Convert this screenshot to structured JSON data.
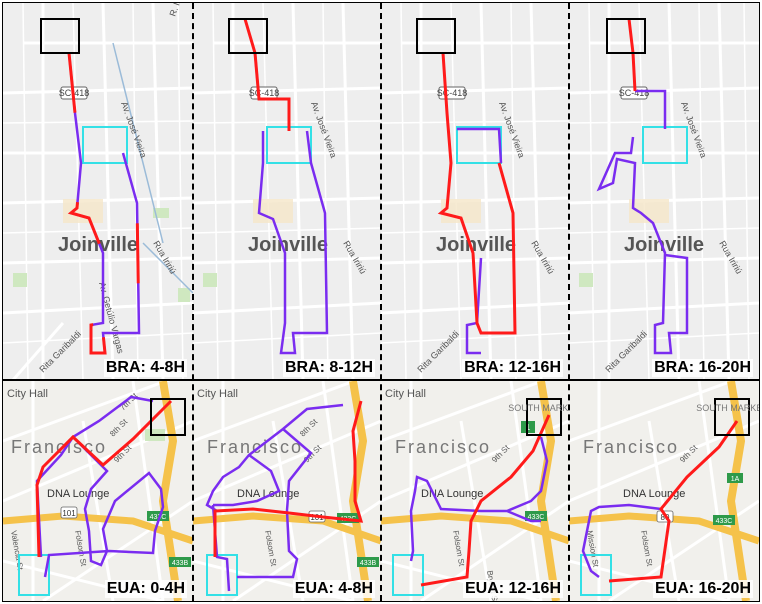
{
  "colors": {
    "route_red": "#ff1a1a",
    "route_purple": "#7a2cf0",
    "origin_box": "#000000",
    "destination_box": "#33e0e6",
    "map_bg_bra": "#eeeeee",
    "map_bg_eua": "#f1f0ec",
    "highway": "#f5c24a"
  },
  "top_row": {
    "map_labels": {
      "city": "Joinville",
      "highway_shield": "SC-418",
      "avenue": "Av. José Vieira",
      "street_right": "Rua Iririú",
      "street_bottom": "Rita Garibaldi",
      "avenue_lower": "Av. Getúlio Vargas",
      "top_right": "R. Ir"
    },
    "panels": [
      {
        "caption": "BRA: 4-8H"
      },
      {
        "caption": "BRA: 8-12H"
      },
      {
        "caption": "BRA: 12-16H"
      },
      {
        "caption": "BRA: 16-20H"
      }
    ]
  },
  "bottom_row": {
    "map_labels": {
      "city": "Francisco",
      "city_hall": "City Hall",
      "dna_lounge": "DNA Lounge",
      "market": "SOUTH MARKET",
      "street_7th": "7th St",
      "street_8th": "8th St",
      "street_9th": "9th St",
      "folsom": "Folsom St",
      "valencia": "Valencia St",
      "mission": "Mission St",
      "bryant": "Bryant St",
      "shield_101": "101",
      "shield_80": "80",
      "exit_433c": "433C",
      "exit_433b": "433B",
      "exit_1": "1",
      "exit_1a": "1A"
    },
    "panels": [
      {
        "caption": "EUA: 0-4H"
      },
      {
        "caption": "EUA: 4-8H"
      },
      {
        "caption": "EUA: 12-16H"
      },
      {
        "caption": "EUA: 16-20H"
      }
    ]
  }
}
